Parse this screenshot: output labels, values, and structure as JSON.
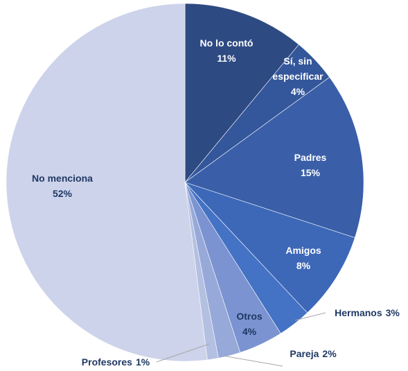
{
  "chart_data": {
    "type": "pie",
    "categories": [
      "No lo contó",
      "Sí, sin especificar",
      "Padres",
      "Amigos",
      "Hermanos",
      "Otros",
      "Pareja",
      "Profesores",
      "No menciona"
    ],
    "values": [
      11,
      4,
      15,
      8,
      3,
      4,
      2,
      1,
      52
    ],
    "value_labels": [
      "11%",
      "4%",
      "15%",
      "8%",
      "3%",
      "4%",
      "2%",
      "1%",
      "52%"
    ],
    "colors": [
      "#2e4a82",
      "#34569a",
      "#3a5fa8",
      "#3d68b8",
      "#4472c4",
      "#7b93d0",
      "#97a9d9",
      "#b4c0e2",
      "#cdd3ea"
    ]
  }
}
